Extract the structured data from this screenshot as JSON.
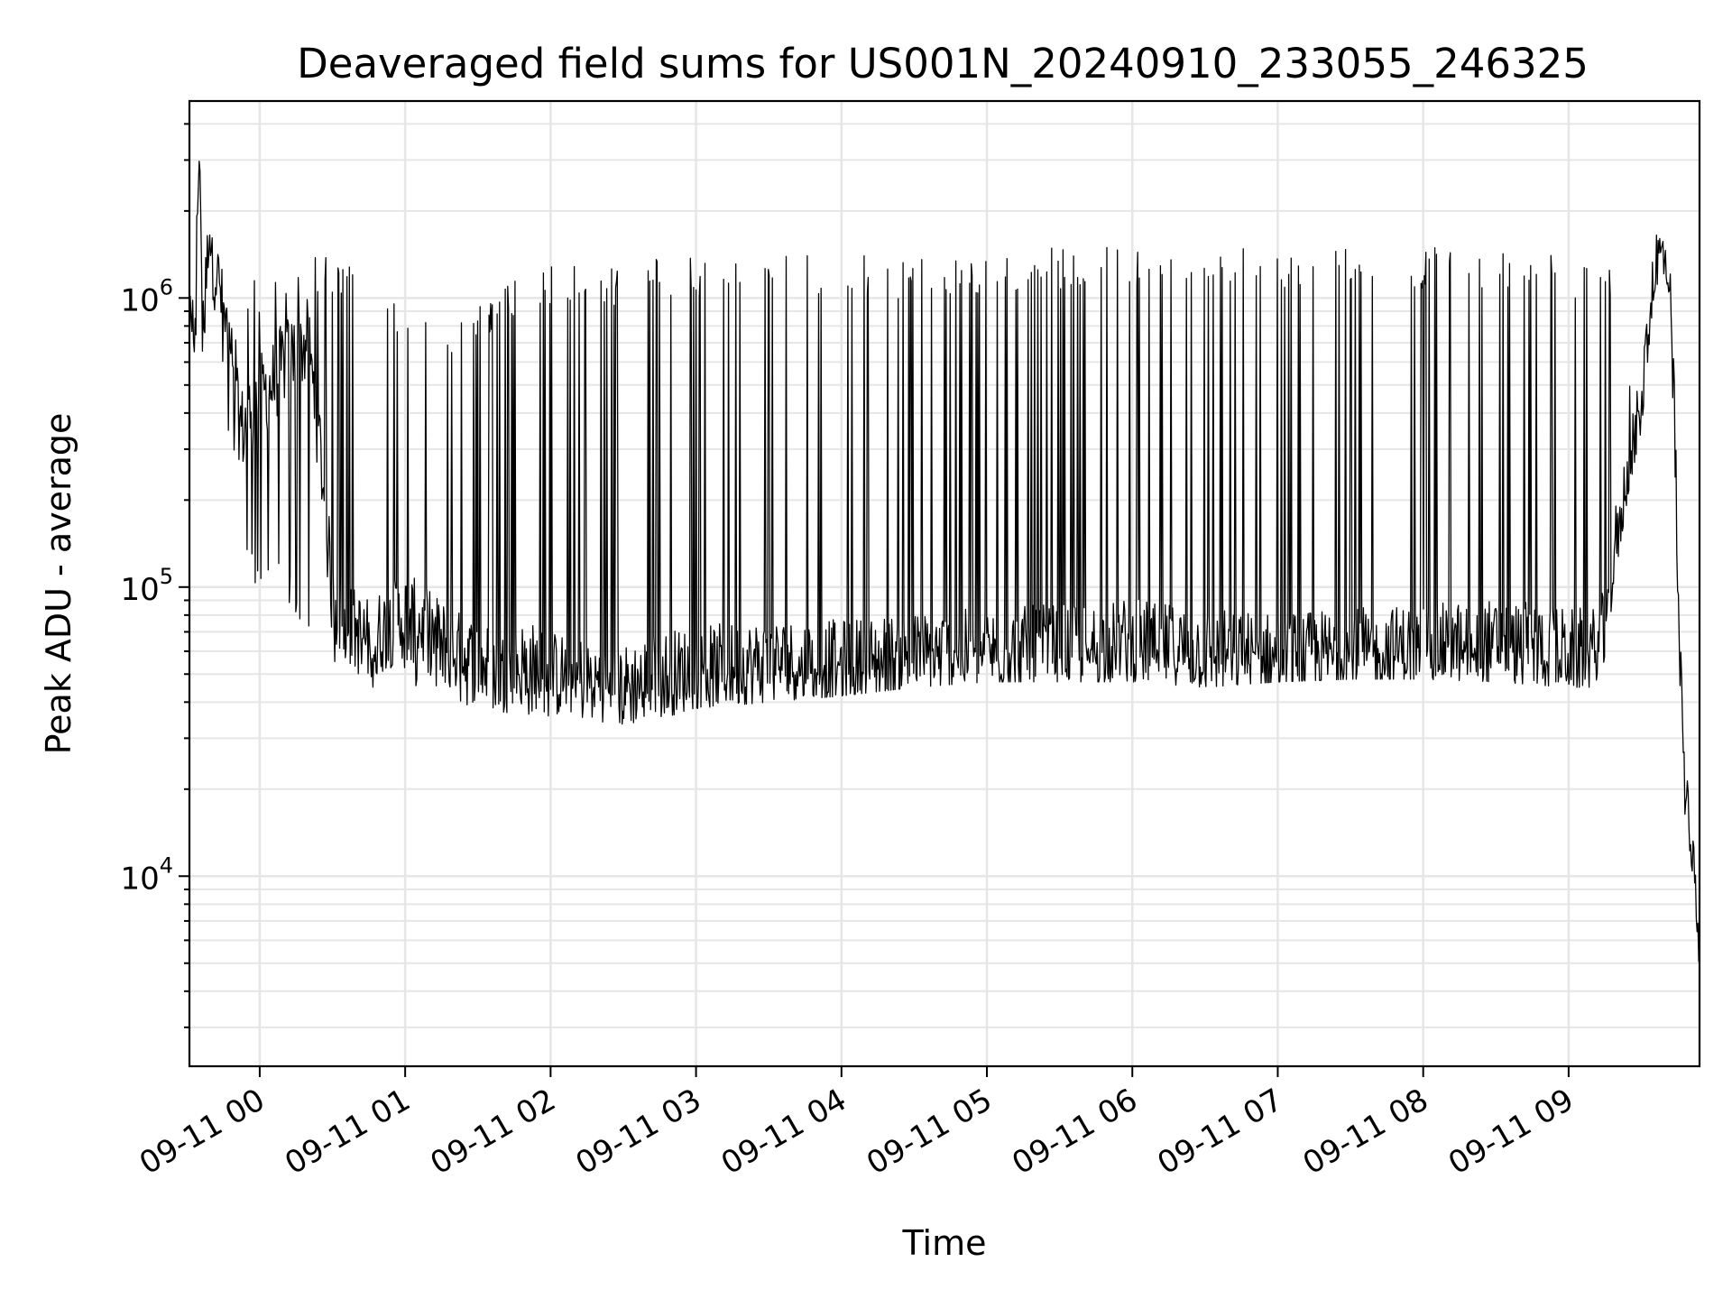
{
  "chart_data": {
    "type": "line",
    "title": "Deaveraged field sums for US001N_20240910_233055_246325",
    "xlabel": "Time",
    "ylabel": "Peak ADU - average",
    "yscale": "log",
    "ylim": [
      2200,
      4800000
    ],
    "xlim": [
      "2024-09-10T23:31",
      "2024-09-11T09:54"
    ],
    "grid": "on, major and minor",
    "legend": "none",
    "series_color": "#000000",
    "x_ticks": [
      {
        "value": "2024-09-11T00:00",
        "label": "09-11 00"
      },
      {
        "value": "2024-09-11T01:00",
        "label": "09-11 01"
      },
      {
        "value": "2024-09-11T02:00",
        "label": "09-11 02"
      },
      {
        "value": "2024-09-11T03:00",
        "label": "09-11 03"
      },
      {
        "value": "2024-09-11T04:00",
        "label": "09-11 04"
      },
      {
        "value": "2024-09-11T05:00",
        "label": "09-11 05"
      },
      {
        "value": "2024-09-11T06:00",
        "label": "09-11 06"
      },
      {
        "value": "2024-09-11T07:00",
        "label": "09-11 07"
      },
      {
        "value": "2024-09-11T08:00",
        "label": "09-11 08"
      },
      {
        "value": "2024-09-11T09:00",
        "label": "09-11 09"
      }
    ],
    "y_ticks": [
      {
        "value": 10000,
        "base": "10",
        "exp": "4"
      },
      {
        "value": 100000,
        "base": "10",
        "exp": "5"
      },
      {
        "value": 1000000,
        "base": "10",
        "exp": "6"
      }
    ],
    "series": [
      {
        "x": [
          "2024-09-10T23:31",
          "2024-09-10T23:33",
          "2024-09-10T23:35",
          "2024-09-10T23:37",
          "2024-09-10T23:39",
          "2024-09-10T23:41",
          "2024-09-10T23:43",
          "2024-09-10T23:45",
          "2024-09-10T23:47",
          "2024-09-10T23:49",
          "2024-09-10T23:51",
          "2024-09-10T23:53",
          "2024-09-10T23:55",
          "2024-09-10T23:57",
          "2024-09-10T23:59",
          "2024-09-11T00:05",
          "2024-09-11T00:10",
          "2024-09-11T00:15",
          "2024-09-11T00:20",
          "2024-09-11T00:25",
          "2024-09-11T00:30",
          "2024-09-11T00:35",
          "2024-09-11T00:40",
          "2024-09-11T00:45",
          "2024-09-11T00:50",
          "2024-09-11T00:55",
          "2024-09-11T01:00",
          "2024-09-11T01:10",
          "2024-09-11T01:20",
          "2024-09-11T01:30",
          "2024-09-11T01:40",
          "2024-09-11T01:50",
          "2024-09-11T02:00",
          "2024-09-11T02:15",
          "2024-09-11T02:30",
          "2024-09-11T02:45",
          "2024-09-11T03:00",
          "2024-09-11T03:30",
          "2024-09-11T04:00",
          "2024-09-11T04:30",
          "2024-09-11T05:00",
          "2024-09-11T05:30",
          "2024-09-11T06:00",
          "2024-09-11T06:30",
          "2024-09-11T07:00",
          "2024-09-11T07:30",
          "2024-09-11T08:00",
          "2024-09-11T08:30",
          "2024-09-11T09:00",
          "2024-09-11T09:05",
          "2024-09-11T09:10",
          "2024-09-11T09:15",
          "2024-09-11T09:20",
          "2024-09-11T09:25",
          "2024-09-11T09:30",
          "2024-09-11T09:35",
          "2024-09-11T09:38",
          "2024-09-11T09:40",
          "2024-09-11T09:42",
          "2024-09-11T09:44",
          "2024-09-11T09:46",
          "2024-09-11T09:48",
          "2024-09-11T09:50",
          "2024-09-11T09:52",
          "2024-09-11T09:54"
        ],
        "y": [
          750000,
          800000,
          3300000,
          780000,
          1900000,
          1300000,
          1200000,
          900000,
          700000,
          450000,
          400000,
          350000,
          380000,
          420000,
          450000,
          500000,
          600000,
          650000,
          700000,
          300000,
          90000,
          75000,
          70000,
          65000,
          70000,
          75000,
          80000,
          70000,
          60000,
          55000,
          50000,
          55000,
          50000,
          48000,
          45000,
          50000,
          52000,
          55000,
          55000,
          58000,
          60000,
          62000,
          65000,
          60000,
          58000,
          60000,
          62000,
          65000,
          60000,
          60000,
          60000,
          70000,
          150000,
          250000,
          400000,
          1200000,
          1400000,
          1300000,
          900000,
          300000,
          50000,
          20000,
          14000,
          10000,
          5000
        ],
        "low": [
          600000,
          600000,
          600000,
          600000,
          600000,
          600000,
          700000,
          500000,
          300000,
          250000,
          200000,
          150000,
          120000,
          100000,
          100000,
          100000,
          90000,
          80000,
          70000,
          60000,
          55000,
          50000,
          48000,
          45000,
          45000,
          45000,
          45000,
          42000,
          40000,
          38000,
          37000,
          36000,
          35000,
          35000,
          33000,
          35000,
          38000,
          40000,
          42000,
          45000,
          47000,
          47000,
          47000,
          45000,
          47000,
          48000,
          48000,
          47000,
          45000,
          45000,
          45000,
          55000,
          120000,
          220000,
          350000,
          1000000,
          1200000,
          1100000,
          700000,
          200000,
          30000,
          16000,
          12000,
          9000,
          4500
        ],
        "high": [
          1000000,
          1100000,
          3300000,
          1200000,
          1900000,
          1500000,
          1400000,
          1200000,
          1000000,
          800000,
          800000,
          1000000,
          1100000,
          1200000,
          1200000,
          1300000,
          1300000,
          1300000,
          1400000,
          1500000,
          1400000,
          1300000,
          1300000,
          1200000,
          1100000,
          1000000,
          1000000,
          900000,
          800000,
          1000000,
          1100000,
          1200000,
          1300000,
          1300000,
          1300000,
          1400000,
          1400000,
          1400000,
          1400000,
          1400000,
          1400000,
          1500000,
          1500000,
          1600000,
          1500000,
          1500000,
          1500000,
          1500000,
          1400000,
          1400000,
          1400000,
          1400000,
          1200000,
          500000,
          600000,
          1500000,
          2600000,
          1600000,
          1200000,
          600000,
          80000,
          30000,
          16000,
          12000,
          6000
        ]
      }
    ]
  }
}
